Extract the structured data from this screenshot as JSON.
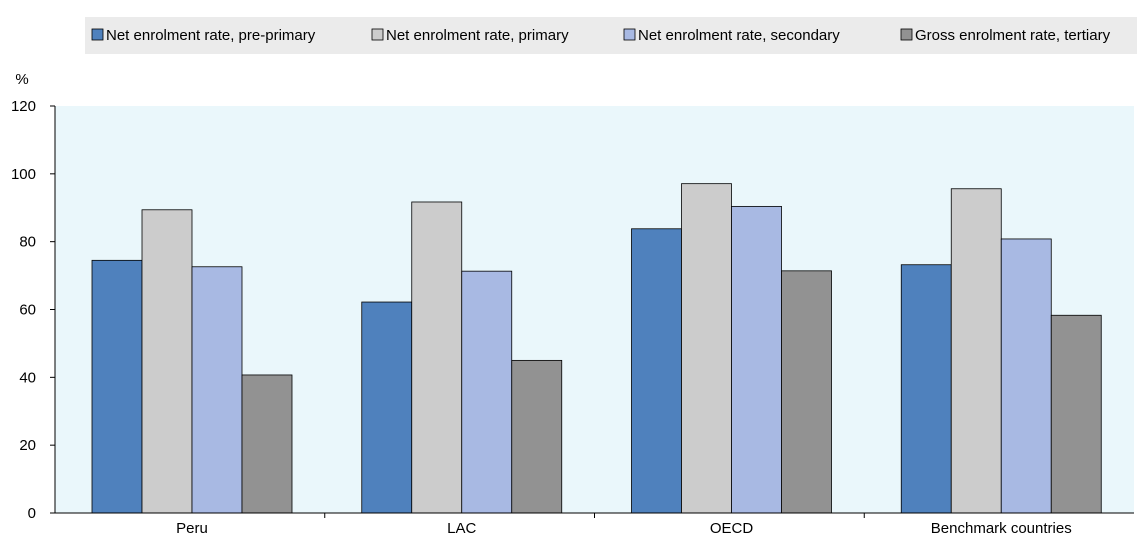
{
  "chart_data": {
    "type": "bar",
    "categories": [
      "Peru",
      "LAC",
      "OECD",
      "Benchmark countries"
    ],
    "series": [
      {
        "name": "Net enrolment rate, pre-primary",
        "color": "#4f81bd",
        "values": [
          74.5,
          62.2,
          83.8,
          73.2
        ]
      },
      {
        "name": "Net enrolment rate, primary",
        "color": "#cccccc",
        "values": [
          89.4,
          91.7,
          97.1,
          95.6
        ]
      },
      {
        "name": "Net enrolment rate, secondary",
        "color": "#a8b9e3",
        "values": [
          72.6,
          71.3,
          90.4,
          80.8
        ]
      },
      {
        "name": "Gross enrolment rate, tertiary",
        "color": "#929292",
        "values": [
          40.7,
          45.0,
          71.4,
          58.3
        ]
      }
    ],
    "ylabel": "%",
    "ylim": [
      0,
      120
    ],
    "yticks": [
      "0",
      "20",
      "40",
      "60",
      "80",
      "100",
      "120"
    ],
    "legend_position": "top",
    "plot_background": "#eaf7fb",
    "legend_background": "#ebebeb"
  }
}
